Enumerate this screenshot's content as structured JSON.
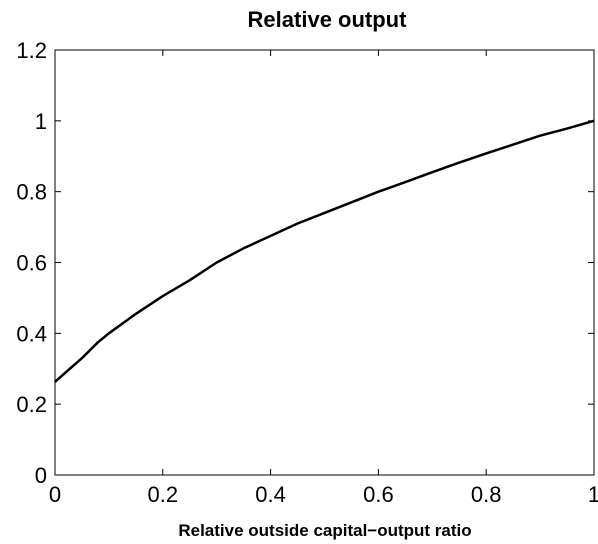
{
  "chart_data": {
    "type": "line",
    "title": "Relative output",
    "xlabel": "Relative outside capital−output ratio",
    "ylabel": "",
    "xlim": [
      0,
      1
    ],
    "ylim": [
      0,
      1.2
    ],
    "x_ticks": [
      0,
      0.2,
      0.4,
      0.6,
      0.8,
      1
    ],
    "x_tick_labels": [
      "0",
      "0.2",
      "0.4",
      "0.6",
      "0.8",
      "1"
    ],
    "y_ticks": [
      0,
      0.2,
      0.4,
      0.6,
      0.8,
      1,
      1.2
    ],
    "y_tick_labels": [
      "0",
      "0.2",
      "0.4",
      "0.6",
      "0.8",
      "1",
      "1.2"
    ],
    "grid": false,
    "line_color": "#000000",
    "series": [
      {
        "x": [
          0,
          0.02,
          0.05,
          0.08,
          0.1,
          0.15,
          0.2,
          0.25,
          0.3,
          0.35,
          0.4,
          0.45,
          0.5,
          0.55,
          0.6,
          0.65,
          0.7,
          0.75,
          0.8,
          0.85,
          0.9,
          0.95,
          1
        ],
        "values": [
          0.263,
          0.29,
          0.33,
          0.375,
          0.4,
          0.455,
          0.505,
          0.55,
          0.6,
          0.64,
          0.675,
          0.71,
          0.74,
          0.77,
          0.8,
          0.827,
          0.855,
          0.882,
          0.908,
          0.933,
          0.958,
          0.978,
          1.0
        ]
      }
    ]
  }
}
